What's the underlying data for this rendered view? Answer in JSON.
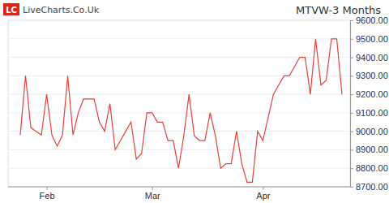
{
  "chart_data": {
    "type": "line",
    "title": "MTVW-3 Months",
    "logo_badge": "LC",
    "logo_text": "LiveCharts.Co.Uk",
    "categories": [
      null,
      null,
      null,
      null,
      null,
      "Feb",
      null,
      null,
      null,
      null,
      null,
      null,
      null,
      null,
      null,
      null,
      null,
      null,
      null,
      null,
      null,
      null,
      null,
      null,
      null,
      "Mar",
      null,
      null,
      null,
      null,
      null,
      null,
      null,
      null,
      null,
      null,
      null,
      null,
      null,
      null,
      null,
      null,
      null,
      null,
      null,
      null,
      "Apr",
      null,
      null,
      null,
      null,
      null,
      null,
      null,
      null,
      null,
      null,
      null,
      null,
      null,
      null,
      null
    ],
    "values": [
      8980,
      9300,
      9020,
      9000,
      8980,
      9200,
      8980,
      8920,
      8980,
      9300,
      8980,
      9100,
      9175,
      9175,
      9175,
      9050,
      9000,
      9150,
      8900,
      8950,
      9000,
      9050,
      8850,
      8880,
      9100,
      9100,
      9050,
      9050,
      8950,
      8950,
      8800,
      8975,
      9200,
      8975,
      8950,
      8950,
      9100,
      8975,
      8800,
      8825,
      8825,
      9000,
      8825,
      8725,
      8725,
      9000,
      8950,
      9075,
      9200,
      9250,
      9300,
      9300,
      9350,
      9400,
      9400,
      9200,
      9500,
      9250,
      9275,
      9500,
      9500,
      9200
    ],
    "color": "#e8403a",
    "ylim": [
      8700,
      9600
    ],
    "yticks": [
      {
        "value": 8700,
        "label": "8700.00"
      },
      {
        "value": 8800,
        "label": "8800.00"
      },
      {
        "value": 8900,
        "label": "8900.00"
      },
      {
        "value": 9000,
        "label": "9000.00"
      },
      {
        "value": 9100,
        "label": "9100.00"
      },
      {
        "value": 9200,
        "label": "9200.00"
      },
      {
        "value": 9300,
        "label": "9300.00"
      },
      {
        "value": 9400,
        "label": "9400.00"
      },
      {
        "value": 9500,
        "label": "9500.00"
      },
      {
        "value": 9600,
        "label": "9600.00"
      }
    ],
    "grid": true
  }
}
